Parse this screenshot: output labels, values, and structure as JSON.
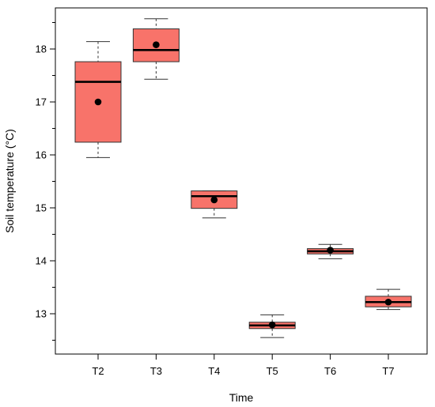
{
  "chart_data": {
    "type": "boxplot",
    "title": "",
    "xlabel": "Time",
    "ylabel": "Soil temperature (°C)",
    "ylim": [
      12.45,
      18.75
    ],
    "y_ticks": [
      13,
      14,
      15,
      16,
      17,
      18
    ],
    "y_minor_ticks": [
      12.5,
      13.5,
      14.5,
      15.5,
      16.5,
      17.5,
      18.5
    ],
    "grid": false,
    "legend": "none",
    "box_fill": "#f8736a",
    "box_stroke": "#333333",
    "categories": [
      "T2",
      "T3",
      "T4",
      "T5",
      "T6",
      "T7"
    ],
    "boxes": [
      {
        "category": "T2",
        "min": 15.95,
        "q1": 16.24,
        "median": 17.38,
        "q3": 17.76,
        "max": 18.14,
        "mean": 17.0
      },
      {
        "category": "T3",
        "min": 17.43,
        "q1": 17.76,
        "median": 17.98,
        "q3": 18.38,
        "max": 18.57,
        "mean": 18.08
      },
      {
        "category": "T4",
        "min": 14.81,
        "q1": 14.99,
        "median": 15.22,
        "q3": 15.32,
        "max": 15.32,
        "mean": 15.15
      },
      {
        "category": "T5",
        "min": 12.55,
        "q1": 12.72,
        "median": 12.78,
        "q3": 12.84,
        "max": 12.98,
        "mean": 12.79
      },
      {
        "category": "T6",
        "min": 14.04,
        "q1": 14.13,
        "median": 14.18,
        "q3": 14.23,
        "max": 14.31,
        "mean": 14.2
      },
      {
        "category": "T7",
        "min": 13.08,
        "q1": 13.13,
        "median": 13.22,
        "q3": 13.33,
        "max": 13.46,
        "mean": 13.22
      }
    ]
  }
}
